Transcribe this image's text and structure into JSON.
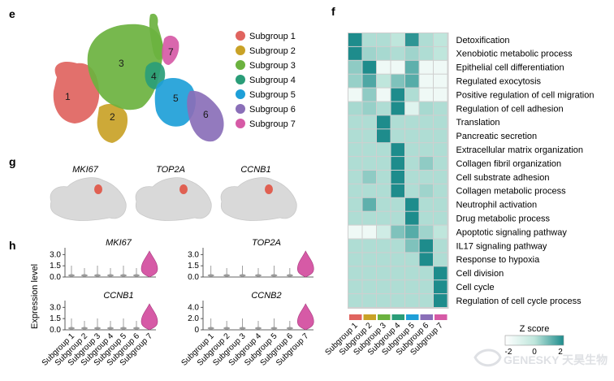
{
  "panels": {
    "e": "e",
    "f": "f",
    "g": "g",
    "h": "h"
  },
  "subgroup_labels": [
    "Subgroup 1",
    "Subgroup 2",
    "Subgroup 3",
    "Subgroup 4",
    "Subgroup 5",
    "Subgroup 6",
    "Subgroup 7"
  ],
  "subgroup_colors": [
    "#e0645f",
    "#c9a227",
    "#6bb23f",
    "#2a9d78",
    "#1e9fd8",
    "#8a6fb8",
    "#d65aa6"
  ],
  "tsne_cluster_numbers": [
    "1",
    "2",
    "3",
    "4",
    "5",
    "6",
    "7"
  ],
  "feature_plot_titles": [
    "MKI67",
    "TOP2A",
    "CCNB1"
  ],
  "violin": {
    "ylabel": "Expression level",
    "plots": [
      {
        "gene": "MKI67",
        "ticks": [
          "0.0",
          "1.5",
          "3.0"
        ],
        "ymax": 3.6
      },
      {
        "gene": "TOP2A",
        "ticks": [
          "0.0",
          "1.5",
          "3.0"
        ],
        "ymax": 3.6
      },
      {
        "gene": "CCNB1",
        "ticks": [
          "0.0",
          "1.5",
          "3.0"
        ],
        "ymax": 3.6
      },
      {
        "gene": "CCNB2",
        "ticks": [
          "0",
          "2.0",
          "4.0"
        ],
        "ymax": 5.0
      }
    ]
  },
  "heatmap": {
    "rows": [
      "Detoxification",
      "Xenobiotic metabolic process",
      "Epithelial cell differentiation",
      "Regulated exocytosis",
      "Positive regulation of cell migration",
      "Regulation of cell adhesion",
      "Translation",
      "Pancreatic secretion",
      "Extracellular matrix organization",
      "Collagen fibril organization",
      "Cell substrate adhesion",
      "Collagen metabolic process",
      "Neutrophil activation",
      "Drug metabolic process",
      "Apoptotic signaling pathway",
      "IL17 signaling pathway",
      "Response to hypoxia",
      "Cell division",
      "Cell cycle",
      "Regulation of cell cycle process"
    ],
    "legend_title": "Z score",
    "legend_ticks": [
      "-2",
      "0",
      "2"
    ]
  },
  "chart_data": {
    "type": "heatmap",
    "columns": [
      "Subgroup 1",
      "Subgroup 2",
      "Subgroup 3",
      "Subgroup 4",
      "Subgroup 5",
      "Subgroup 6",
      "Subgroup 7"
    ],
    "rows": [
      "Detoxification",
      "Xenobiotic metabolic process",
      "Epithelial cell differentiation",
      "Regulated exocytosis",
      "Positive regulation of cell migration",
      "Regulation of cell adhesion",
      "Translation",
      "Pancreatic secretion",
      "Extracellular matrix organization",
      "Collagen fibril organization",
      "Cell substrate adhesion",
      "Collagen metabolic process",
      "Neutrophil activation",
      "Drug metabolic process",
      "Apoptotic signaling pathway",
      "IL17 signaling pathway",
      "Response to hypoxia",
      "Cell division",
      "Cell cycle",
      "Regulation of cell cycle process"
    ],
    "values": [
      [
        2.0,
        0.2,
        0.2,
        0.0,
        1.8,
        0.2,
        0.0
      ],
      [
        2.0,
        0.4,
        0.3,
        0.2,
        0.4,
        0.2,
        0.0
      ],
      [
        0.6,
        2.0,
        -1.5,
        -1.5,
        1.2,
        -1.5,
        -1.5
      ],
      [
        0.5,
        1.4,
        0.0,
        0.8,
        1.3,
        -1.5,
        -1.5
      ],
      [
        -1.5,
        0.6,
        -1.5,
        2.0,
        0.2,
        -1.5,
        -1.5
      ],
      [
        0.3,
        0.5,
        0.2,
        2.0,
        -1.0,
        0.3,
        0.2
      ],
      [
        0.2,
        0.2,
        2.0,
        0.2,
        0.2,
        0.2,
        0.2
      ],
      [
        0.2,
        0.2,
        2.0,
        0.2,
        0.2,
        0.2,
        0.2
      ],
      [
        0.2,
        0.2,
        0.2,
        2.0,
        0.2,
        0.2,
        0.2
      ],
      [
        0.2,
        0.2,
        0.2,
        2.0,
        0.2,
        0.6,
        0.2
      ],
      [
        0.2,
        0.6,
        0.2,
        2.0,
        0.2,
        0.2,
        0.2
      ],
      [
        0.2,
        0.2,
        0.2,
        2.0,
        0.2,
        0.4,
        0.2
      ],
      [
        0.2,
        1.2,
        0.2,
        0.2,
        2.0,
        0.2,
        0.2
      ],
      [
        0.2,
        0.2,
        0.2,
        0.2,
        2.0,
        0.2,
        0.2
      ],
      [
        -1.5,
        -1.5,
        -0.5,
        0.8,
        1.3,
        0.4,
        0.0
      ],
      [
        0.2,
        0.2,
        0.2,
        0.2,
        0.8,
        2.0,
        0.2
      ],
      [
        0.2,
        0.2,
        0.2,
        0.2,
        0.2,
        2.0,
        0.2
      ],
      [
        0.2,
        0.2,
        0.2,
        0.2,
        0.2,
        0.2,
        2.0
      ],
      [
        0.2,
        0.2,
        0.2,
        0.2,
        0.2,
        0.2,
        2.0
      ],
      [
        0.2,
        0.2,
        0.2,
        0.2,
        0.2,
        0.2,
        2.0
      ]
    ],
    "zlim": [
      -2,
      2
    ]
  },
  "watermark": "GENESKY 天昊生物"
}
